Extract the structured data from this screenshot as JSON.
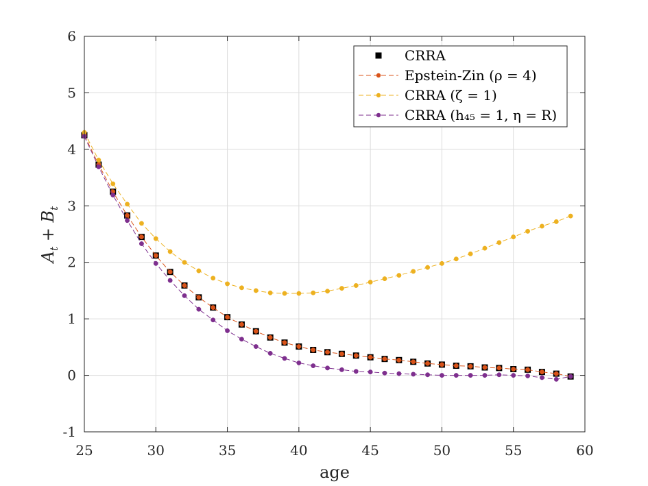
{
  "chart_data": {
    "type": "line",
    "xlabel": "age",
    "ylabel": "A_t + B_t",
    "xlim": [
      25,
      60
    ],
    "ylim": [
      -1,
      6
    ],
    "xticks": [
      "25",
      "30",
      "35",
      "40",
      "45",
      "50",
      "55",
      "60"
    ],
    "yticks": [
      "-1",
      "0",
      "1",
      "2",
      "3",
      "4",
      "5",
      "6"
    ],
    "grid": true,
    "legend_position": "top-right",
    "x": [
      25,
      26,
      27,
      28,
      29,
      30,
      31,
      32,
      33,
      34,
      35,
      36,
      37,
      38,
      39,
      40,
      41,
      42,
      43,
      44,
      45,
      46,
      47,
      48,
      49,
      50,
      51,
      52,
      53,
      54,
      55,
      56,
      57,
      58,
      59
    ],
    "series": [
      {
        "name": "CRRA",
        "marker": "square",
        "line": "none",
        "color": "#000000",
        "values": [
          4.25,
          3.73,
          3.25,
          2.83,
          2.45,
          2.12,
          1.83,
          1.59,
          1.38,
          1.2,
          1.03,
          0.9,
          0.78,
          0.67,
          0.58,
          0.51,
          0.45,
          0.41,
          0.38,
          0.35,
          0.32,
          0.29,
          0.27,
          0.24,
          0.21,
          0.19,
          0.17,
          0.16,
          0.14,
          0.13,
          0.11,
          0.1,
          0.06,
          0.03,
          -0.02
        ]
      },
      {
        "name": "Epstein-Zin (ρ = 4)",
        "marker": "circle",
        "line": "dashed",
        "color": "#D95319",
        "values": [
          4.25,
          3.73,
          3.25,
          2.83,
          2.45,
          2.12,
          1.83,
          1.59,
          1.38,
          1.2,
          1.03,
          0.9,
          0.78,
          0.67,
          0.58,
          0.51,
          0.45,
          0.41,
          0.38,
          0.35,
          0.32,
          0.29,
          0.27,
          0.24,
          0.21,
          0.19,
          0.17,
          0.16,
          0.14,
          0.13,
          0.11,
          0.1,
          0.06,
          0.03,
          -0.02
        ]
      },
      {
        "name": "CRRA (ζ = 1)",
        "marker": "circle",
        "line": "dashed",
        "color": "#EDB120",
        "values": [
          4.3,
          3.81,
          3.39,
          3.03,
          2.69,
          2.42,
          2.19,
          2.0,
          1.85,
          1.72,
          1.62,
          1.55,
          1.5,
          1.46,
          1.45,
          1.45,
          1.46,
          1.49,
          1.54,
          1.59,
          1.65,
          1.71,
          1.77,
          1.84,
          1.91,
          1.98,
          2.06,
          2.15,
          2.25,
          2.35,
          2.45,
          2.55,
          2.64,
          2.72,
          2.82
        ]
      },
      {
        "name": "CRRA (h₄₅ = 1, η = R)",
        "marker": "circle",
        "line": "dashed",
        "color": "#7E2F8E",
        "values": [
          4.23,
          3.69,
          3.19,
          2.74,
          2.33,
          1.98,
          1.68,
          1.41,
          1.17,
          0.98,
          0.79,
          0.64,
          0.51,
          0.39,
          0.3,
          0.22,
          0.17,
          0.13,
          0.1,
          0.07,
          0.06,
          0.04,
          0.03,
          0.02,
          0.01,
          0.0,
          0.0,
          0.0,
          0.0,
          0.01,
          0.0,
          -0.01,
          -0.04,
          -0.07,
          -0.02
        ]
      }
    ]
  }
}
